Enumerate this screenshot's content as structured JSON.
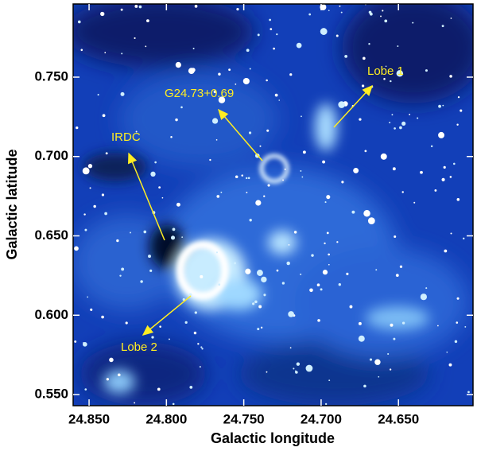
{
  "chart_data": {
    "type": "image",
    "xlabel": "Galactic longitude",
    "ylabel": "Galactic latitude",
    "xlim": [
      24.8603,
      24.6018
    ],
    "ylim": [
      0.543,
      0.7961
    ],
    "xticks": [
      {
        "value": 24.85,
        "label": "24.850"
      },
      {
        "value": 24.8,
        "label": "24.800"
      },
      {
        "value": 24.75,
        "label": "24.750"
      },
      {
        "value": 24.7,
        "label": "24.700"
      },
      {
        "value": 24.65,
        "label": "24.650"
      }
    ],
    "yticks": [
      {
        "value": 0.55,
        "label": "0.550"
      },
      {
        "value": 0.6,
        "label": "0.600"
      },
      {
        "value": 0.65,
        "label": "0.650"
      },
      {
        "value": 0.7,
        "label": "0.700"
      },
      {
        "value": 0.75,
        "label": "0.750"
      }
    ],
    "annotations": [
      "Lobe 1",
      "G24.73+0.69",
      "IRDC",
      "Lobe 2"
    ],
    "annotation_color": "#ffee22"
  }
}
